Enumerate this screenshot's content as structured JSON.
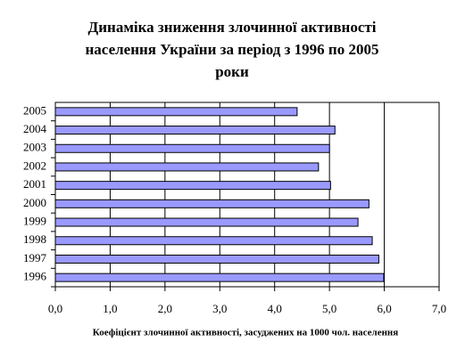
{
  "chart_data": {
    "type": "bar",
    "orientation": "horizontal",
    "title": [
      "Динаміка зниження злочинної активності",
      "населення України за період з 1996 по 2005",
      "роки"
    ],
    "x_label": "Коефіцієнт злочинної активності, засуджених на 1000 чол. населення",
    "categories": [
      "1996",
      "1997",
      "1998",
      "1999",
      "2000",
      "2001",
      "2002",
      "2003",
      "2004",
      "2005"
    ],
    "values": [
      5.99,
      5.9,
      5.78,
      5.52,
      5.72,
      5.02,
      4.8,
      5.0,
      5.1,
      4.41
    ],
    "color": "#9999ff",
    "xlim": [
      0,
      7
    ],
    "xticks": [
      {
        "value": 0,
        "label": "0,0"
      },
      {
        "value": 1,
        "label": "1,0"
      },
      {
        "value": 2,
        "label": "2,0"
      },
      {
        "value": 3,
        "label": "3,0"
      },
      {
        "value": 4,
        "label": "4,0"
      },
      {
        "value": 5,
        "label": "5,0"
      },
      {
        "value": 6,
        "label": "6,0"
      },
      {
        "value": 7,
        "label": "7,0"
      }
    ],
    "grid": true
  }
}
